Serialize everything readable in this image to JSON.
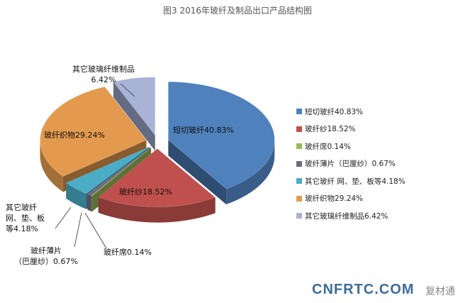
{
  "chart_data": {
    "type": "pie",
    "title": "图3 2016年玻纤及制品出口产品结构图",
    "start": "top-clockwise",
    "legend_position": "right",
    "slices": [
      {
        "name": "短切玻纤",
        "value": 40.83,
        "label": "短切玻纤40.83%",
        "legend": "短切玻纤40.83%",
        "color": "#4f81bd"
      },
      {
        "name": "玻纤纱",
        "value": 18.52,
        "label": "玻纤纱18.52%",
        "legend": "玻纤纱18.52%",
        "color": "#c0504d"
      },
      {
        "name": "玻纤席",
        "value": 0.14,
        "label": "玻纤席0.14%",
        "legend": "玻纤席0.14%",
        "color": "#9bbb59"
      },
      {
        "name": "玻纤薄片（巴厘纱）",
        "value": 0.67,
        "label": "玻纤薄片\n（巴厘纱）0.67%",
        "legend": "玻纤薄片（巴厘纱）0.67%",
        "color": "#6f6b85"
      },
      {
        "name": "其它玻纤 网、垫、板等",
        "value": 4.18,
        "label": "其它玻纤\n网、垫、板\n等4.18%",
        "legend": "其它玻纤 网、垫、板等4.18%",
        "color": "#4bacc6"
      },
      {
        "name": "玻纤织物",
        "value": 29.24,
        "label": "玻纤织物29.24%",
        "legend": "玻纤织物29.24%",
        "color": "#e39a4e"
      },
      {
        "name": "其它玻璃纤维制品",
        "value": 6.42,
        "label": "其它玻璃纤维制品\n6.42%",
        "legend": "其它玻璃纤维制品6.42%",
        "color": "#a9b3d8"
      }
    ]
  },
  "watermark": {
    "text": "CNFRTC.COM",
    "cn": "复材通"
  }
}
